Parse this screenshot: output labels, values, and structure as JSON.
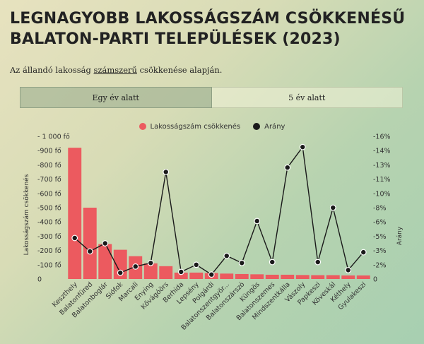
{
  "header": {
    "title_line1": "LEGNAGYOBB LAKOSSÁGSZÁM CSÖKKENÉSŰ",
    "title_line2": "BALATON-PARTI TELEPÜLÉSEK (2023)",
    "subtitle_pre": "Az állandó lakosság ",
    "subtitle_underlined": "számszerű",
    "subtitle_post": " csökkenése alapján."
  },
  "tabs": [
    {
      "label": "Egy év alatt",
      "active": true
    },
    {
      "label": "5 év alatt",
      "active": false
    }
  ],
  "colors": {
    "bar": "#ec5a5f",
    "line": "#1a1a1a"
  },
  "chart_data": {
    "type": "bar",
    "categories": [
      "Keszthely",
      "Balatonfüred",
      "Balatonboglár",
      "Siófok",
      "Marcali",
      "Enying",
      "Kővágóörs",
      "Berhida",
      "Lepsény",
      "Polgárdi",
      "Balatonszentgyör...",
      "Balatonszárszó",
      "Küngös",
      "Balatonszemes",
      "Mindszentkálla",
      "Vászoly",
      "Papkeszi",
      "Köveskál",
      "Kéthely",
      "Gyulakeszi"
    ],
    "series": [
      {
        "name": "Lakosságszám csökkenés",
        "kind": "bar",
        "axis": "left",
        "values": [
          920,
          500,
          245,
          205,
          160,
          110,
          90,
          45,
          45,
          42,
          38,
          35,
          33,
          30,
          30,
          28,
          27,
          27,
          25,
          25
        ]
      },
      {
        "name": "Arány",
        "kind": "line",
        "axis": "right",
        "values": [
          -4.6,
          -3.1,
          -4.0,
          -0.7,
          -1.4,
          -1.8,
          -12.0,
          -0.8,
          -1.6,
          -0.5,
          -2.6,
          -1.8,
          -6.5,
          -1.9,
          -12.5,
          -14.8,
          -1.9,
          -8.0,
          -1.0,
          -3.0
        ]
      }
    ],
    "ylabel_left": "Lakosságszám csökkenés",
    "ylabel_right": "Arány",
    "ylim_left": [
      0,
      1000
    ],
    "ylim_right": [
      0,
      -16
    ],
    "yticks_left": [
      "- 1 000 fő",
      "-900 fő",
      "-800 fő",
      "-700 fő",
      "-600 fő",
      "-500 fő",
      "-400 fő",
      "-300 fő",
      "-200 fő",
      "-100 fő",
      "0"
    ],
    "yticks_right": [
      "-16%",
      "-14%",
      "-13%",
      "-11%",
      "-10%",
      "-8%",
      "-6%",
      "-5%",
      "-3%",
      "-2%",
      "0"
    ]
  }
}
